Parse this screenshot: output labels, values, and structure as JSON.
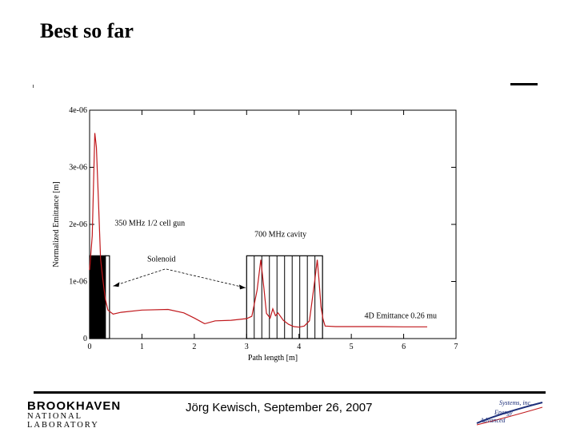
{
  "slide": {
    "title": "Best so far",
    "footer": "Jörg Kewisch, September 26, 2007"
  },
  "logos": {
    "left": {
      "line1": "BROOKHAVEN",
      "line2": "NATIONAL LABORATORY"
    },
    "right": {
      "line1": "Systems, inc.",
      "line2": "Energy",
      "line3": "Advanced"
    }
  },
  "chart_data": {
    "type": "line",
    "xlabel": "Path length [m]",
    "ylabel": "Normalized Emittance [m]",
    "xlim": [
      0,
      7
    ],
    "ylim": [
      0,
      4e-06
    ],
    "x_ticks": [
      "0",
      "1",
      "2",
      "3",
      "4",
      "5",
      "6",
      "7"
    ],
    "y_ticks": [
      "0",
      "1e-06",
      "2e-06",
      "3e-06",
      "4e-06"
    ],
    "series": [
      {
        "color": "#c0181c",
        "x": [
          0.0,
          0.05,
          0.1,
          0.13,
          0.17,
          0.21,
          0.25,
          0.3,
          0.35,
          0.45,
          0.6,
          1.0,
          1.5,
          1.8,
          2.0,
          2.2,
          2.4,
          2.7,
          3.0,
          3.1,
          3.2,
          3.27,
          3.33,
          3.38,
          3.45,
          3.5,
          3.55,
          3.6,
          3.7,
          3.8,
          3.9,
          4.0,
          4.1,
          4.2,
          4.3,
          4.35,
          4.38,
          4.42,
          4.46,
          4.5,
          4.7,
          5.0,
          5.5,
          6.0,
          6.45
        ],
        "y": [
          1.2e-06,
          1.8e-06,
          3.6e-06,
          3.35e-06,
          2.4e-06,
          1.4e-06,
          1.05e-06,
          7e-07,
          5e-07,
          4.3e-07,
          4.6e-07,
          5e-07,
          5.1e-07,
          4.5e-07,
          3.6e-07,
          2.6e-07,
          3.1e-07,
          3.2e-07,
          3.5e-07,
          3.9e-07,
          8.5e-07,
          1.38e-06,
          8.8e-07,
          4.4e-07,
          3.6e-07,
          5.2e-07,
          4e-07,
          4.5e-07,
          3.2e-07,
          2.5e-07,
          2.1e-07,
          2e-07,
          2.2e-07,
          3.1e-07,
          1e-06,
          1.38e-06,
          1.05e-06,
          5.6e-07,
          3.4e-07,
          2.2e-07,
          2.1e-07,
          2.1e-07,
          2.1e-07,
          2.05e-07,
          2.05e-07
        ]
      }
    ],
    "regions": [
      {
        "x0": 0.0,
        "x1": 0.3,
        "ymax": 1.45e-06,
        "filled": true
      },
      {
        "x0": 0.3,
        "x1": 0.38,
        "ymax": 1.45e-06,
        "filled": false
      },
      {
        "x0": 3.0,
        "x1": 4.45,
        "ymax": 1.45e-06,
        "filled": false,
        "stripes": 10
      }
    ],
    "annotations": [
      {
        "id": "gun",
        "text": "350 MHz 1/2 cell gun",
        "x": 0.48,
        "y": 1.98e-06
      },
      {
        "id": "cavity",
        "text": "700 MHz cavity",
        "x": 3.15,
        "y": 1.78e-06
      },
      {
        "id": "solenoid",
        "text": "Solenoid",
        "x": 1.1,
        "y": 1.35e-06
      },
      {
        "id": "emittance",
        "text": "4D Emittance 0.26 mu",
        "x": 5.25,
        "y": 3.6e-07
      }
    ],
    "arrow": {
      "from": [
        0.45,
        9.2e-07
      ],
      "via": [
        1.45,
        1.22e-06
      ],
      "to": [
        2.98,
        8.9e-07
      ]
    }
  }
}
